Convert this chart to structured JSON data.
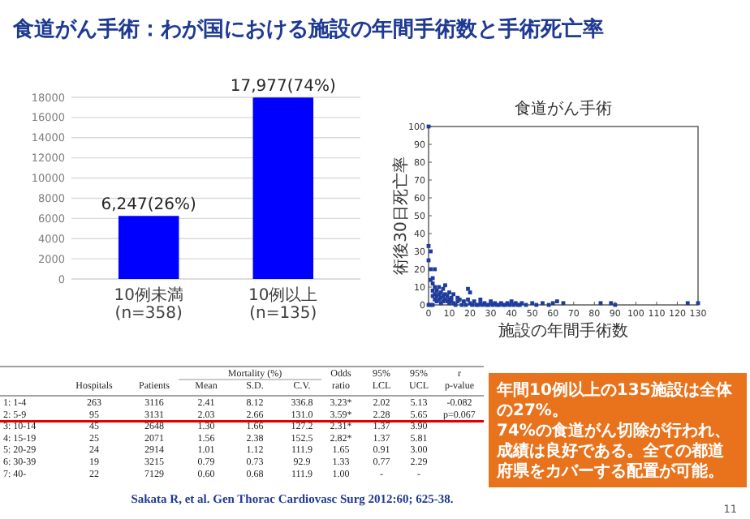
{
  "chart_data": [
    {
      "type": "bar",
      "title": "食道がん手術：わが国における施設の年間手術数と手術死亡率",
      "categories": [
        "10例未満 (n=358)",
        "10例以上 (n=135)"
      ],
      "values": [
        6247,
        17977
      ],
      "value_labels": [
        "6,247(26%)",
        "17,977(74%)"
      ],
      "color": "#0000ff",
      "ylim": [
        0,
        18000
      ],
      "yticks": [
        0,
        2000,
        4000,
        6000,
        8000,
        10000,
        12000,
        14000,
        16000,
        18000
      ],
      "grid": "y"
    },
    {
      "type": "scatter",
      "title": "食道がん手術",
      "xlabel": "施設の年間手術数",
      "ylabel": "術後30日死亡率",
      "color": "#1f3c9c",
      "marker": "square",
      "xlim": [
        0,
        130
      ],
      "ylim": [
        0,
        100
      ],
      "xticks": [
        0,
        10,
        20,
        30,
        40,
        50,
        60,
        70,
        80,
        90,
        100,
        110,
        120,
        130
      ],
      "yticks": [
        0,
        10,
        20,
        30,
        40,
        50,
        60,
        70,
        80,
        90,
        100
      ],
      "x": [
        0,
        0,
        0,
        0,
        1,
        1,
        1,
        1,
        2,
        2,
        2,
        2,
        2,
        3,
        3,
        3,
        3,
        4,
        4,
        4,
        5,
        5,
        5,
        6,
        6,
        6,
        7,
        7,
        7,
        8,
        8,
        8,
        9,
        9,
        10,
        10,
        10,
        11,
        11,
        12,
        12,
        14,
        14,
        15,
        17,
        19,
        19,
        20,
        20,
        22,
        25,
        25,
        27,
        30,
        32,
        35,
        38,
        40,
        42,
        45,
        50,
        55,
        60,
        62,
        65,
        83,
        88,
        90,
        125,
        130,
        13,
        16,
        18,
        21,
        23,
        24,
        26,
        28,
        29,
        31,
        33,
        34,
        36,
        37,
        39,
        41,
        43,
        44,
        47,
        52,
        58
      ],
      "values": [
        100,
        33,
        25,
        0,
        30,
        20,
        14,
        0,
        15,
        12,
        8,
        5,
        0,
        20,
        10,
        6,
        3,
        8,
        5,
        2,
        10,
        6,
        3,
        7,
        4,
        1,
        9,
        5,
        2,
        11,
        6,
        3,
        5,
        2,
        7,
        3,
        1,
        4,
        2,
        6,
        1,
        4,
        2,
        3,
        2,
        9,
        3,
        7,
        1,
        2,
        3,
        1,
        1,
        2,
        1,
        1,
        1,
        2,
        1,
        1,
        1,
        1,
        1,
        2,
        1,
        1,
        1,
        0,
        1,
        1,
        0,
        0,
        0,
        0,
        0,
        0,
        0,
        0,
        0,
        0,
        0,
        0,
        0,
        0,
        0,
        0,
        0,
        0,
        0,
        0,
        0
      ]
    },
    {
      "type": "other",
      "cell_labels": [
        [
          null,
          null,
          null,
          null,
          "Mortality (%)",
          null,
          "Odds",
          "95%",
          "95%",
          "r"
        ],
        [
          null,
          "Hospitals",
          "Patients",
          "Mean",
          "S.D.",
          "C.V.",
          "ratio",
          "LCL",
          "UCL",
          "p-value"
        ],
        [
          "1: 1-4",
          "263",
          "3116",
          "2.41",
          "8.12",
          "336.8",
          "3.23*",
          "2.02",
          "5.13",
          "-0.082"
        ],
        [
          "2: 5-9",
          "95",
          "3131",
          "2.03",
          "2.66",
          "131.0",
          "3.59*",
          "2.28",
          "5.65",
          "p=0.067"
        ],
        [
          "3: 10-14",
          "45",
          "2648",
          "1.30",
          "1.66",
          "127.2",
          "2.31*",
          "1.37",
          "3.90",
          null
        ],
        [
          "4: 15-19",
          "25",
          "2071",
          "1.56",
          "2.38",
          "152.5",
          "2.82*",
          "1.37",
          "5.81",
          null
        ],
        [
          "5: 20-29",
          "24",
          "2914",
          "1.01",
          "1.12",
          "111.9",
          "1.65",
          "0.91",
          "3.00",
          null
        ],
        [
          "6: 30-39",
          "19",
          "3215",
          "0.79",
          "0.73",
          "92.9",
          "1.33",
          "0.77",
          "2.29",
          null
        ],
        [
          "7: 40-",
          "22",
          "7129",
          "0.60",
          "0.68",
          "111.9",
          "1.00",
          "-",
          "-",
          null
        ]
      ],
      "annotations": [
        "年間10例以上の135施設は全体の27%。",
        "74%の食道がん切除が行われ、成績は良好である。全ての都道府県をカバーする配置が可能。",
        "Sakata R, et al. Gen Thorac Cardiovasc Surg 2012:60; 625-38.",
        "11"
      ]
    }
  ]
}
